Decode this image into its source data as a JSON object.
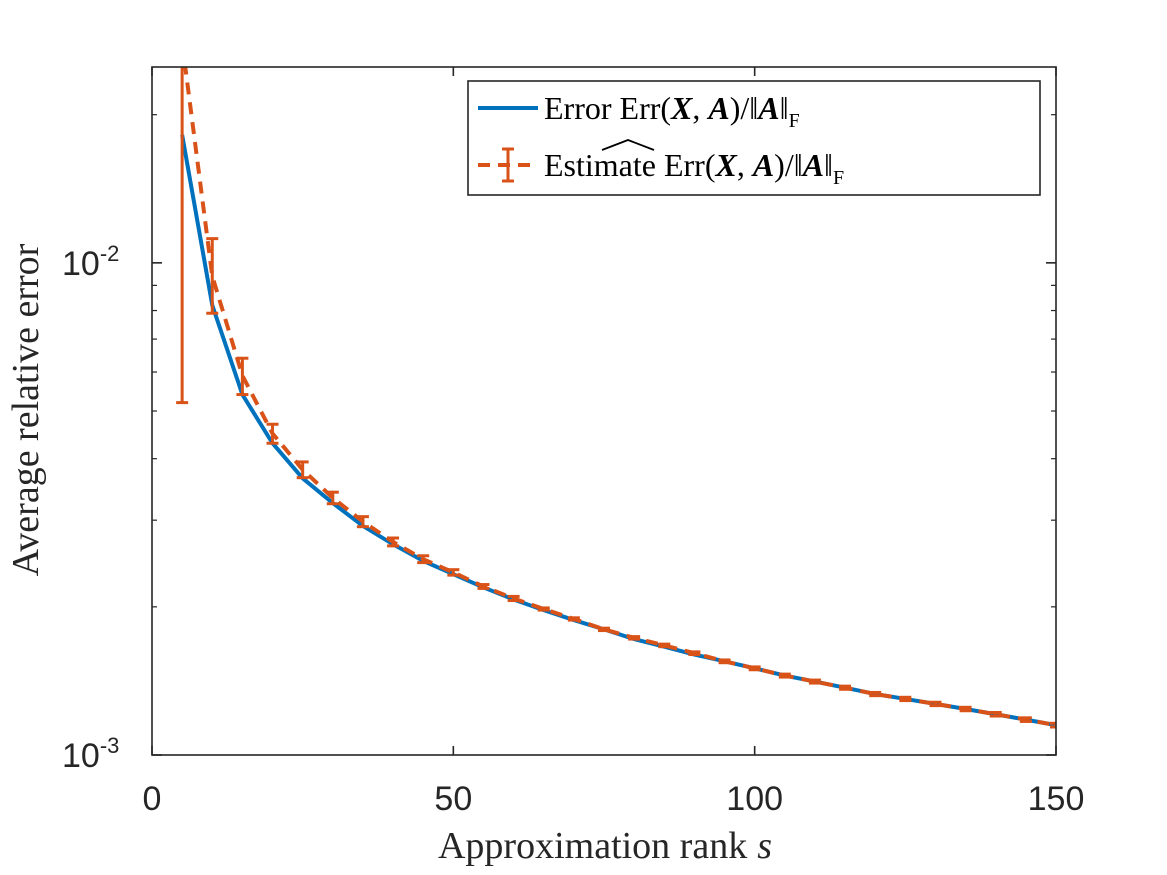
{
  "chart_data": {
    "type": "line",
    "xlabel": "Approximation rank",
    "xlabel_var": "s",
    "ylabel": "Average relative error",
    "xlim": [
      0,
      150
    ],
    "ylim": [
      0.001,
      0.025
    ],
    "yscale": "log",
    "xticks": [
      0,
      50,
      100,
      150
    ],
    "xtick_labels": [
      "0",
      "50",
      "100",
      "150"
    ],
    "yticks": [
      0.001,
      0.01
    ],
    "ytick_labels": [
      {
        "base": "10",
        "exp": "-3"
      },
      {
        "base": "10",
        "exp": "-2"
      }
    ],
    "grid": false,
    "legend_position": "top-right",
    "x": [
      5,
      10,
      15,
      20,
      25,
      30,
      35,
      40,
      45,
      50,
      55,
      60,
      65,
      70,
      75,
      80,
      85,
      90,
      95,
      100,
      105,
      110,
      115,
      120,
      125,
      130,
      135,
      140,
      145,
      150
    ],
    "series": [
      {
        "name": "Error Err(X, A)/‖A‖F",
        "color": "#0072bd",
        "style": "solid",
        "values": [
          0.0182,
          0.0082,
          0.0054,
          0.0043,
          0.00365,
          0.00325,
          0.00292,
          0.00268,
          0.00248,
          0.00233,
          0.00219,
          0.00207,
          0.00197,
          0.00188,
          0.0018,
          0.00172,
          0.00166,
          0.0016,
          0.00155,
          0.0015,
          0.00145,
          0.00141,
          0.00137,
          0.00133,
          0.0013,
          0.00127,
          0.00124,
          0.00121,
          0.00118,
          0.00115
        ]
      },
      {
        "name": "Estimate Err^(X, A)/‖A‖F",
        "color": "#d95319",
        "style": "dashed",
        "error_bars": true,
        "values": [
          0.028,
          0.0094,
          0.0059,
          0.0045,
          0.0038,
          0.00333,
          0.00298,
          0.00271,
          0.0025,
          0.00235,
          0.0022,
          0.00208,
          0.00198,
          0.00189,
          0.0018,
          0.00173,
          0.00167,
          0.00161,
          0.00155,
          0.0015,
          0.00145,
          0.00141,
          0.00137,
          0.00133,
          0.0013,
          0.00127,
          0.00124,
          0.00121,
          0.00118,
          0.00115
        ],
        "err_low": [
          0.0052,
          0.0079,
          0.0054,
          0.0043,
          0.00366,
          0.00324,
          0.00291,
          0.00266,
          0.00246,
          0.00232,
          0.00218,
          0.00206,
          0.00197,
          0.00188,
          0.00179,
          0.00172,
          0.00166,
          0.0016,
          0.00154,
          0.00149,
          0.00144,
          0.0014,
          0.00136,
          0.00132,
          0.00129,
          0.00126,
          0.00123,
          0.0012,
          0.00117,
          0.00114
        ],
        "err_high": [
          0.028,
          0.0112,
          0.0064,
          0.0047,
          0.00394,
          0.00342,
          0.00305,
          0.00276,
          0.00254,
          0.00238,
          0.00222,
          0.0021,
          0.00199,
          0.0019,
          0.00181,
          0.00174,
          0.00168,
          0.00162,
          0.00156,
          0.00151,
          0.00146,
          0.00142,
          0.00138,
          0.00134,
          0.00131,
          0.00128,
          0.00125,
          0.00122,
          0.00119,
          0.00116
        ]
      }
    ]
  },
  "legend": {
    "entries": [
      {
        "prefix": "Error ",
        "err": "Err",
        "args_x": "X",
        "args_a": "A",
        "norm_a": "A",
        "sub": "F"
      },
      {
        "prefix": "Estimate ",
        "err": "Err",
        "args_x": "X",
        "args_a": "A",
        "norm_a": "A",
        "sub": "F"
      }
    ]
  }
}
